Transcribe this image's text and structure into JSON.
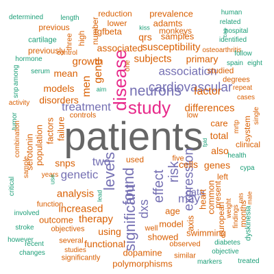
{
  "colors": {
    "orange": "#d95f02",
    "green": "#1b9e77",
    "purple": "#7570b3",
    "magenta": "#e7298a",
    "gray": "#666666"
  },
  "words": [
    {
      "text": "patients",
      "color": "gray"
    },
    {
      "text": "study",
      "color": "magenta"
    },
    {
      "text": "disease",
      "color": "magenta"
    },
    {
      "text": "levels",
      "color": "purple"
    },
    {
      "text": "found",
      "color": "purple"
    },
    {
      "text": "significant",
      "color": "purple"
    },
    {
      "text": "effect",
      "color": "purple"
    },
    {
      "text": "risk",
      "color": "purple"
    },
    {
      "text": "expression",
      "color": "purple"
    },
    {
      "text": "dxs",
      "color": "purple"
    },
    {
      "text": "neurons",
      "color": "purple"
    },
    {
      "text": "cardiovascular",
      "color": "purple"
    },
    {
      "text": "association",
      "color": "purple"
    },
    {
      "text": "treatment",
      "color": "purple"
    },
    {
      "text": "genetic",
      "color": "purple"
    },
    {
      "text": "two",
      "color": "purple"
    },
    {
      "text": "may",
      "color": "purple"
    },
    {
      "text": "data",
      "color": "purple"
    },
    {
      "text": "gene",
      "color": "orange"
    },
    {
      "text": "men",
      "color": "orange"
    },
    {
      "text": "factor",
      "color": "orange"
    },
    {
      "text": "differences",
      "color": "orange"
    },
    {
      "text": "subjects",
      "color": "orange"
    },
    {
      "text": "susceptibility",
      "color": "orange"
    },
    {
      "text": "associated",
      "color": "orange"
    },
    {
      "text": "growth",
      "color": "orange"
    },
    {
      "text": "mean",
      "color": "orange"
    },
    {
      "text": "models",
      "color": "orange"
    },
    {
      "text": "disorders",
      "color": "orange"
    },
    {
      "text": "factors",
      "color": "orange"
    },
    {
      "text": "failure",
      "color": "orange"
    },
    {
      "text": "population",
      "color": "orange"
    },
    {
      "text": "serotonin",
      "color": "orange"
    },
    {
      "text": "snps",
      "color": "orange"
    },
    {
      "text": "analysis",
      "color": "orange"
    },
    {
      "text": "increased",
      "color": "orange"
    },
    {
      "text": "therapy",
      "color": "orange"
    },
    {
      "text": "outcome",
      "color": "orange"
    },
    {
      "text": "using",
      "color": "orange"
    },
    {
      "text": "functional",
      "color": "orange"
    },
    {
      "text": "dopamine",
      "color": "orange"
    },
    {
      "text": "polymorphisms",
      "color": "orange"
    },
    {
      "text": "showed",
      "color": "orange"
    },
    {
      "text": "model",
      "color": "orange"
    },
    {
      "text": "age",
      "color": "orange"
    },
    {
      "text": "cells",
      "color": "orange"
    },
    {
      "text": "genes",
      "color": "orange"
    },
    {
      "text": "also",
      "color": "orange"
    },
    {
      "text": "total",
      "color": "orange"
    },
    {
      "text": "care",
      "color": "orange"
    },
    {
      "text": "axis",
      "color": "orange"
    },
    {
      "text": "heart",
      "color": "orange"
    },
    {
      "text": "common",
      "color": "orange"
    },
    {
      "text": "european",
      "color": "orange"
    },
    {
      "text": "primary",
      "color": "orange"
    },
    {
      "text": "qrs",
      "color": "orange"
    },
    {
      "text": "samples",
      "color": "orange"
    },
    {
      "text": "prevalence",
      "color": "orange"
    },
    {
      "text": "tgfbeta",
      "color": "orange"
    },
    {
      "text": "adamts",
      "color": "orange"
    },
    {
      "text": "monkeys",
      "color": "orange"
    },
    {
      "text": "reduction",
      "color": "orange"
    },
    {
      "text": "lower",
      "color": "orange"
    },
    {
      "text": "kiss",
      "color": "green"
    },
    {
      "text": "high",
      "color": "orange"
    },
    {
      "text": "number",
      "color": "orange"
    },
    {
      "text": "three",
      "color": "orange"
    },
    {
      "text": "previously",
      "color": "orange"
    },
    {
      "text": "previous",
      "color": "orange"
    },
    {
      "text": "cartilage",
      "color": "green"
    },
    {
      "text": "determined",
      "color": "green"
    },
    {
      "text": "length",
      "color": "green"
    },
    {
      "text": "control",
      "color": "orange"
    },
    {
      "text": "hormone",
      "color": "green"
    },
    {
      "text": "serum",
      "color": "green"
    },
    {
      "text": "snp",
      "color": "green"
    },
    {
      "text": "among",
      "color": "green"
    },
    {
      "text": "activity",
      "color": "orange"
    },
    {
      "text": "tumor",
      "color": "green"
    },
    {
      "text": "combination",
      "color": "orange"
    },
    {
      "text": "sample",
      "color": "orange"
    },
    {
      "text": "years",
      "color": "orange"
    },
    {
      "text": "critical",
      "color": "green"
    },
    {
      "text": "involved",
      "color": "green"
    },
    {
      "text": "function",
      "color": "orange"
    },
    {
      "text": "stroke",
      "color": "green"
    },
    {
      "text": "objectives",
      "color": "orange"
    },
    {
      "text": "however",
      "color": "green"
    },
    {
      "text": "recent",
      "color": "green"
    },
    {
      "text": "changes",
      "color": "green"
    },
    {
      "text": "several",
      "color": "orange"
    },
    {
      "text": "studies",
      "color": "orange"
    },
    {
      "text": "significantly",
      "color": "orange"
    },
    {
      "text": "use",
      "color": "green"
    },
    {
      "text": "lead",
      "color": "green"
    },
    {
      "text": "aim",
      "color": "green"
    },
    {
      "text": "controls",
      "color": "orange"
    },
    {
      "text": "one",
      "color": "orange"
    },
    {
      "text": "related",
      "color": "green"
    },
    {
      "text": "human",
      "color": "green"
    },
    {
      "text": "hospital",
      "color": "green"
    },
    {
      "text": "cag",
      "color": "green"
    },
    {
      "text": "identified",
      "color": "green"
    },
    {
      "text": "osteoarthritis",
      "color": "orange"
    },
    {
      "text": "follow",
      "color": "green"
    },
    {
      "text": "spain",
      "color": "green"
    },
    {
      "text": "eight",
      "color": "green"
    },
    {
      "text": "studied",
      "color": "orange"
    },
    {
      "text": "degrees",
      "color": "orange"
    },
    {
      "text": "repeat",
      "color": "orange"
    },
    {
      "text": "cases",
      "color": "orange"
    },
    {
      "text": "single",
      "color": "orange"
    },
    {
      "text": "male",
      "color": "orange"
    },
    {
      "text": "rats",
      "color": "orange"
    },
    {
      "text": "health",
      "color": "green"
    },
    {
      "text": "clinical",
      "color": "orange"
    },
    {
      "text": "system",
      "color": "orange"
    },
    {
      "text": "mrtp",
      "color": "orange"
    },
    {
      "text": "cypa",
      "color": "green"
    },
    {
      "text": "low",
      "color": "orange"
    },
    {
      "text": "fpld",
      "color": "green"
    },
    {
      "text": "five",
      "color": "orange"
    },
    {
      "text": "used",
      "color": "orange"
    },
    {
      "text": "left",
      "color": "orange"
    },
    {
      "text": "present",
      "color": "orange"
    },
    {
      "text": "months",
      "color": "orange"
    },
    {
      "text": "findings",
      "color": "orange"
    },
    {
      "text": "weight",
      "color": "orange"
    },
    {
      "text": "dyskinesia",
      "color": "green"
    },
    {
      "text": "well",
      "color": "orange"
    },
    {
      "text": "swimming",
      "color": "orange"
    },
    {
      "text": "observed",
      "color": "orange"
    },
    {
      "text": "similar",
      "color": "orange"
    },
    {
      "text": "diabetes",
      "color": "green"
    },
    {
      "text": "objective",
      "color": "green"
    },
    {
      "text": "markers",
      "color": "green"
    },
    {
      "text": "treated",
      "color": "green"
    }
  ]
}
